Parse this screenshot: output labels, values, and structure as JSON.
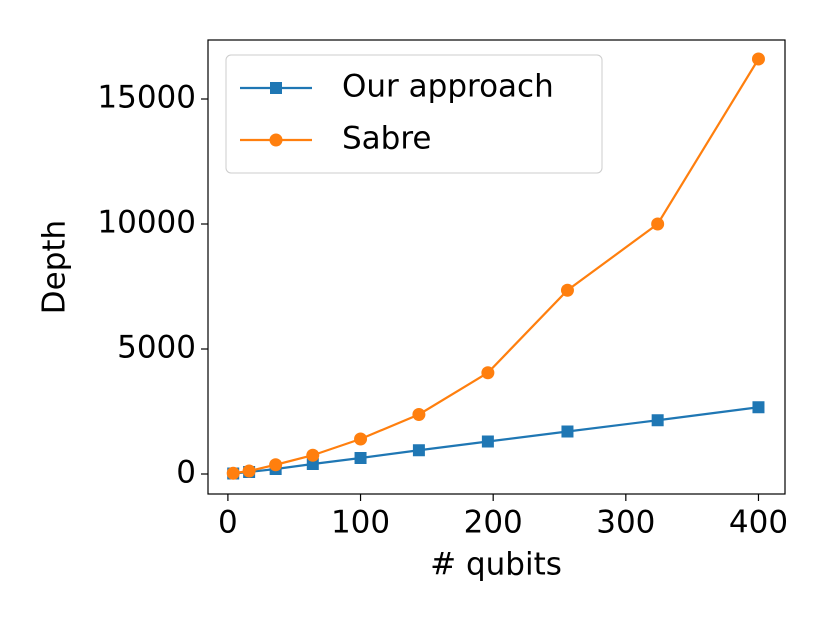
{
  "chart_data": {
    "type": "line",
    "xlabel": "# qubits",
    "ylabel": "Depth",
    "x": [
      4,
      16,
      36,
      64,
      100,
      144,
      196,
      256,
      324,
      400
    ],
    "series": [
      {
        "name": "Our approach",
        "color": "#1f77b4",
        "marker": "square",
        "values": [
          20,
          80,
          200,
          400,
          640,
          950,
          1300,
          1700,
          2150,
          2670
        ]
      },
      {
        "name": "Sabre",
        "color": "#ff7f0e",
        "marker": "circle",
        "values": [
          30,
          120,
          370,
          750,
          1400,
          2380,
          4050,
          7350,
          10000,
          16600
        ]
      }
    ],
    "xlim": [
      -15,
      420
    ],
    "ylim": [
      -800,
      17360
    ],
    "xticks": [
      0,
      100,
      200,
      300,
      400
    ],
    "yticks": [
      0,
      5000,
      10000,
      15000
    ],
    "legend": "upper left"
  }
}
